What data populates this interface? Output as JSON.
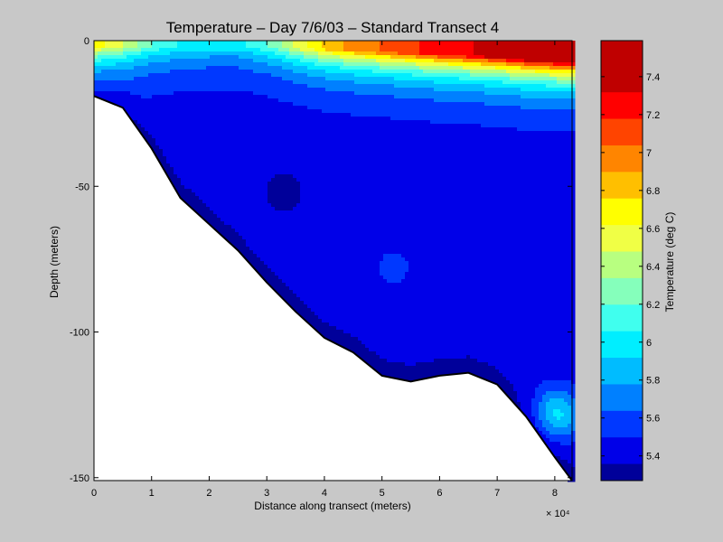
{
  "chart_data": [
    {
      "type": "heatmap",
      "subtype": "filled-contour",
      "title": "Temperature – Day 7/6/03 – Standard Transect 4",
      "xlabel": "Distance along transect (meters)",
      "ylabel": "Depth (meters)",
      "x_multiplier_label": "× 10⁴",
      "x_multiplier": 10000,
      "xlim": [
        0,
        8.3
      ],
      "ylim": [
        -151,
        0
      ],
      "x_ticks": [
        0,
        1,
        2,
        3,
        4,
        5,
        6,
        7,
        8
      ],
      "y_ticks": [
        0,
        -50,
        -100,
        -150
      ],
      "x_tick_labels": [
        "0",
        "1",
        "2",
        "3",
        "4",
        "5",
        "6",
        "7",
        "8"
      ],
      "y_tick_labels": [
        "0",
        "-50",
        "-100",
        "-150"
      ],
      "grid": false,
      "bathymetry": {
        "x": [
          0,
          0.5,
          1.0,
          1.5,
          2.0,
          2.5,
          3.0,
          3.5,
          4.0,
          4.5,
          5.0,
          5.5,
          6.0,
          6.5,
          7.0,
          7.5,
          8.0,
          8.3
        ],
        "depth": [
          -19,
          -23,
          -37,
          -54,
          -63,
          -72,
          -83,
          -93,
          -102,
          -107,
          -115,
          -117,
          -115,
          -114,
          -118,
          -129,
          -143,
          -151
        ]
      },
      "surface_temperature_by_distance": {
        "x": [
          0,
          0.5,
          1.0,
          1.5,
          2.0,
          2.5,
          3.0,
          3.5,
          4.0,
          4.5,
          5.0,
          5.5,
          6.0,
          6.5,
          7.0,
          7.5,
          8.0,
          8.3
        ],
        "temperature": [
          6.7,
          6.5,
          6.2,
          6.05,
          6.0,
          6.0,
          6.2,
          6.5,
          6.8,
          6.95,
          7.05,
          7.15,
          7.25,
          7.3,
          7.4,
          7.55,
          7.6,
          7.6
        ]
      },
      "notable_features": [
        {
          "x": 3.3,
          "depth": -52,
          "temperature": 5.3
        },
        {
          "x": 5.2,
          "depth": -78,
          "temperature": 5.55
        },
        {
          "x": 8.05,
          "depth": -128,
          "temperature": 6.0
        }
      ],
      "colorbar": {
        "label": "Temperature (deg C)",
        "range": [
          5.27,
          7.59
        ],
        "tick_values": [
          5.4,
          5.6,
          5.8,
          6.0,
          6.2,
          6.4,
          6.6,
          6.8,
          7.0,
          7.2,
          7.4
        ],
        "tick_labels": [
          "5.4",
          "5.6",
          "5.8",
          "6",
          "6.2",
          "6.4",
          "6.6",
          "6.8",
          "7",
          "7.2",
          "7.4"
        ],
        "levels": [
          {
            "min": 5.27,
            "max": 5.36,
            "color": "#00009a"
          },
          {
            "min": 5.36,
            "max": 5.5,
            "color": "#0000e8"
          },
          {
            "min": 5.5,
            "max": 5.64,
            "color": "#0038ff"
          },
          {
            "min": 5.64,
            "max": 5.78,
            "color": "#0080ff"
          },
          {
            "min": 5.78,
            "max": 5.92,
            "color": "#00bcff"
          },
          {
            "min": 5.92,
            "max": 6.06,
            "color": "#00eeff"
          },
          {
            "min": 6.06,
            "max": 6.2,
            "color": "#40ffee"
          },
          {
            "min": 6.2,
            "max": 6.34,
            "color": "#85ffbb"
          },
          {
            "min": 6.34,
            "max": 6.48,
            "color": "#b8ff80"
          },
          {
            "min": 6.48,
            "max": 6.62,
            "color": "#f0ff45"
          },
          {
            "min": 6.62,
            "max": 6.76,
            "color": "#ffff00"
          },
          {
            "min": 6.76,
            "max": 6.9,
            "color": "#ffbf00"
          },
          {
            "min": 6.9,
            "max": 7.04,
            "color": "#ff8500"
          },
          {
            "min": 7.04,
            "max": 7.18,
            "color": "#ff4400"
          },
          {
            "min": 7.18,
            "max": 7.32,
            "color": "#ff0000"
          },
          {
            "min": 7.32,
            "max": 7.59,
            "color": "#bf0000"
          }
        ]
      }
    }
  ]
}
